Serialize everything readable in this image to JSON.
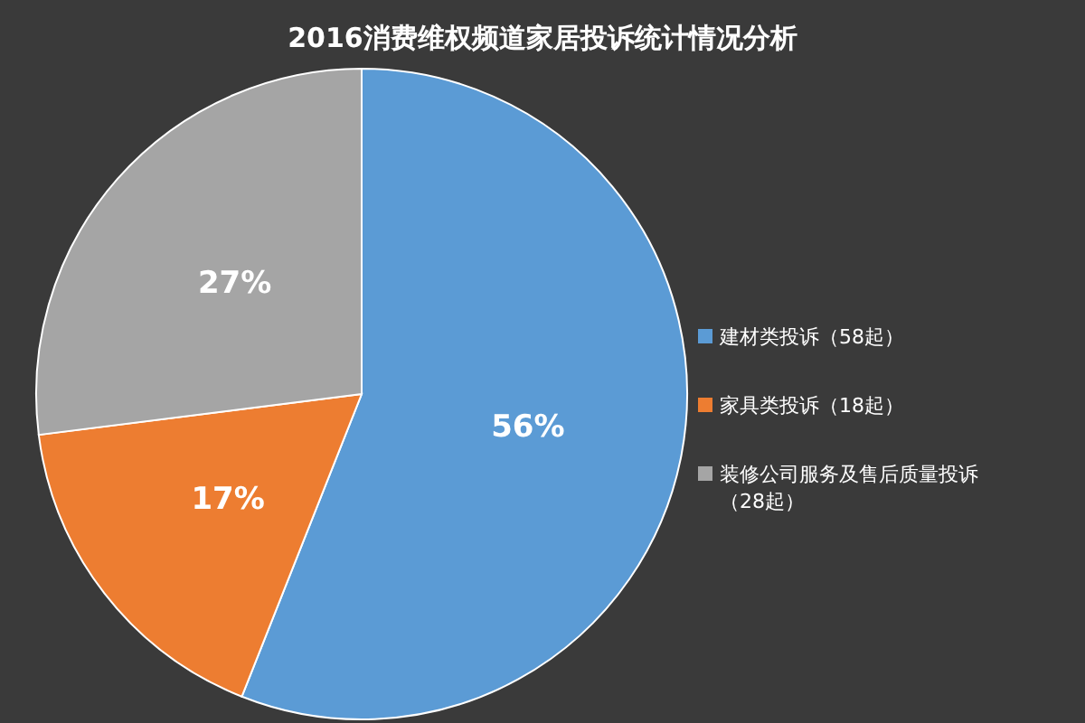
{
  "chart_data": {
    "type": "pie",
    "title": "2016消费维权频道家居投诉统计情况分析",
    "categories": [
      "建材类投诉（58起）",
      "家具类投诉（18起）",
      "装修公司服务及售后质量投诉（28起）"
    ],
    "values": [
      56,
      17,
      27
    ],
    "colors": [
      "#5b9bd5",
      "#ed7d31",
      "#a5a5a5"
    ],
    "value_labels": [
      "56%",
      "17%",
      "27%"
    ],
    "legend": "right"
  }
}
